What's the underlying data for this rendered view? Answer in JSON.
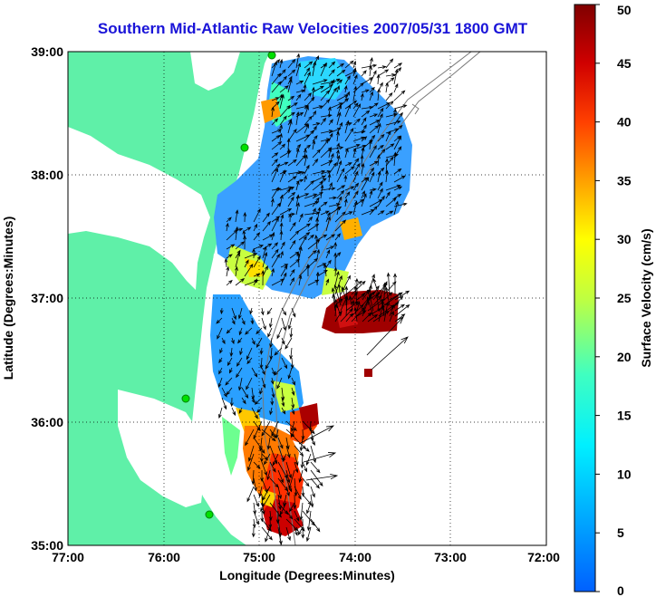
{
  "title": "Southern Mid-Atlantic Raw Velocities 2007/05/31 1800 GMT",
  "map": {
    "x_label": "Longitude (Degrees:Minutes)",
    "y_label": "Latitude (Degrees:Minutes)",
    "x_ticks": [
      "77:00",
      "76:00",
      "75:00",
      "74:00",
      "73:00",
      "72:00"
    ],
    "y_ticks": [
      "39:00",
      "38:00",
      "37:00",
      "36:00",
      "35:00"
    ],
    "lon_range": [
      -77,
      -72
    ],
    "lat_range": [
      35,
      39
    ],
    "land_color": "#5ff0a8",
    "grid": "dotted"
  },
  "colorbar": {
    "label": "Surface Velocity (cm/s)",
    "ticks": [
      "50",
      "45",
      "40",
      "35",
      "30",
      "25",
      "20",
      "15",
      "10",
      "5",
      "0"
    ],
    "range": [
      0,
      50
    ],
    "colormap": "jet"
  },
  "icons": {
    "station_marker": "green-circle-icon",
    "vector": "arrow-icon"
  }
}
